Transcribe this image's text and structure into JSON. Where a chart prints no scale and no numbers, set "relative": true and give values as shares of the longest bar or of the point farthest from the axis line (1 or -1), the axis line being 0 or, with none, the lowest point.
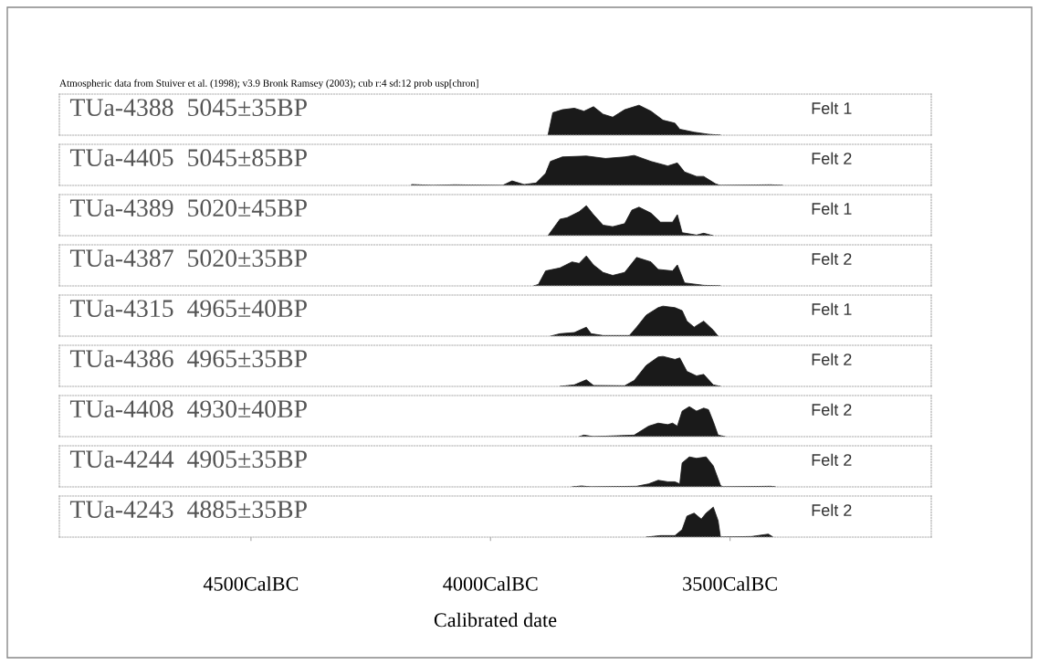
{
  "chart_data": [
    {
      "type": "area",
      "relative": true,
      "color": "#1a1a1a",
      "title": "Atmospheric data from Stuiver et al. (1998); v3.9 Bronk Ramsey (2003); cub r:4 sd:12 prob usp[chron]",
      "annotations": [
        "TUa-4388  5045±35BP",
        "Felt 1"
      ],
      "xlim": [
        4900,
        3080
      ],
      "tick_labels": false,
      "x": [
        3880,
        3870,
        3850,
        3825,
        3805,
        3785,
        3765,
        3745,
        3720,
        3690,
        3665,
        3640,
        3615,
        3605,
        3575,
        3545,
        3520
      ],
      "values": [
        0,
        0.75,
        0.85,
        0.9,
        0.8,
        0.95,
        0.7,
        0.6,
        0.85,
        1.0,
        0.8,
        0.5,
        0.4,
        0.2,
        0.1,
        0.03,
        0
      ]
    },
    {
      "type": "area",
      "relative": true,
      "color": "#1a1a1a",
      "annotations": [
        "TUa-4405  5045±85BP",
        "Felt 2"
      ],
      "xlim": [
        4900,
        3080
      ],
      "tick_labels": false,
      "x": [
        4165,
        4120,
        4075,
        3975,
        3955,
        3930,
        3905,
        3885,
        3875,
        3850,
        3800,
        3760,
        3720,
        3700,
        3665,
        3630,
        3610,
        3595,
        3570,
        3555,
        3530,
        3520,
        3415,
        3390
      ],
      "values": [
        0.03,
        0,
        0.02,
        0,
        0.15,
        0.03,
        0.08,
        0.4,
        0.8,
        0.95,
        0.98,
        0.9,
        0.95,
        1.0,
        0.8,
        0.65,
        0.75,
        0.45,
        0.3,
        0.3,
        0.05,
        0,
        0.02,
        0
      ]
    },
    {
      "type": "area",
      "relative": true,
      "color": "#1a1a1a",
      "annotations": [
        "TUa-4389  5020±45BP",
        "Felt 1"
      ],
      "xlim": [
        4900,
        3080
      ],
      "tick_labels": false,
      "x": [
        3880,
        3855,
        3840,
        3815,
        3800,
        3785,
        3765,
        3745,
        3720,
        3705,
        3690,
        3665,
        3645,
        3620,
        3610,
        3600,
        3570,
        3555,
        3535
      ],
      "values": [
        0,
        0.55,
        0.6,
        0.8,
        1.0,
        0.7,
        0.35,
        0.3,
        0.4,
        0.85,
        0.95,
        0.75,
        0.45,
        0.45,
        0.7,
        0.1,
        0.02,
        0.08,
        0
      ]
    },
    {
      "type": "area",
      "relative": true,
      "color": "#1a1a1a",
      "annotations": [
        "TUa-4387  5020±35BP",
        "Felt 2"
      ],
      "xlim": [
        4900,
        3080
      ],
      "tick_labels": false,
      "x": [
        3910,
        3900,
        3885,
        3855,
        3830,
        3815,
        3800,
        3785,
        3765,
        3745,
        3720,
        3695,
        3665,
        3650,
        3620,
        3610,
        3595,
        3555,
        3520
      ],
      "values": [
        0,
        0.05,
        0.5,
        0.6,
        0.8,
        0.75,
        1.0,
        0.7,
        0.45,
        0.35,
        0.45,
        0.95,
        0.8,
        0.55,
        0.5,
        0.7,
        0.1,
        0.02,
        0
      ]
    },
    {
      "type": "area",
      "relative": true,
      "color": "#1a1a1a",
      "annotations": [
        "TUa-4315  4965±40BP",
        "Felt 1"
      ],
      "xlim": [
        4900,
        3080
      ],
      "tick_labels": false,
      "x": [
        3875,
        3855,
        3825,
        3800,
        3790,
        3765,
        3710,
        3695,
        3675,
        3650,
        3640,
        3615,
        3600,
        3590,
        3575,
        3555,
        3535,
        3525
      ],
      "values": [
        0,
        0.08,
        0.12,
        0.3,
        0.08,
        0.02,
        0.02,
        0.3,
        0.7,
        0.95,
        1.0,
        0.95,
        0.85,
        0.5,
        0.3,
        0.5,
        0.2,
        0
      ]
    },
    {
      "type": "area",
      "relative": true,
      "color": "#1a1a1a",
      "annotations": [
        "TUa-4386  4965±35BP",
        "Felt 2"
      ],
      "xlim": [
        4900,
        3080
      ],
      "tick_labels": false,
      "x": [
        3855,
        3825,
        3800,
        3785,
        3720,
        3700,
        3675,
        3650,
        3640,
        3615,
        3605,
        3590,
        3570,
        3555,
        3535,
        3520
      ],
      "values": [
        0,
        0.05,
        0.22,
        0.03,
        0.02,
        0.2,
        0.7,
        0.98,
        1.0,
        0.9,
        0.95,
        0.5,
        0.35,
        0.4,
        0.05,
        0
      ]
    },
    {
      "type": "area",
      "relative": true,
      "color": "#1a1a1a",
      "annotations": [
        "TUa-4408  4930±40BP",
        "Felt 2"
      ],
      "xlim": [
        4900,
        3080
      ],
      "tick_labels": false,
      "x": [
        3815,
        3805,
        3785,
        3700,
        3670,
        3650,
        3630,
        3620,
        3610,
        3600,
        3585,
        3570,
        3555,
        3545,
        3535,
        3525,
        3510
      ],
      "values": [
        0,
        0.05,
        0,
        0.05,
        0.35,
        0.45,
        0.4,
        0.45,
        0.35,
        0.85,
        1.0,
        0.85,
        0.95,
        0.9,
        0.5,
        0.05,
        0
      ]
    },
    {
      "type": "area",
      "relative": true,
      "color": "#1a1a1a",
      "annotations": [
        "TUa-4244  4905±35BP",
        "Felt 2"
      ],
      "xlim": [
        4900,
        3080
      ],
      "tick_labels": false,
      "x": [
        3830,
        3810,
        3790,
        3695,
        3670,
        3650,
        3630,
        3615,
        3605,
        3600,
        3585,
        3570,
        3550,
        3535,
        3520,
        3515,
        3415,
        3405
      ],
      "values": [
        0,
        0.03,
        0,
        0.02,
        0.1,
        0.22,
        0.17,
        0.17,
        0.1,
        0.8,
        1.0,
        0.95,
        1.0,
        0.7,
        0.05,
        0,
        0.02,
        0
      ]
    },
    {
      "type": "area",
      "relative": true,
      "color": "#1a1a1a",
      "annotations": [
        "TUa-4243  4885±35BP",
        "Felt 2"
      ],
      "xlim": [
        4900,
        3080
      ],
      "xticks": [
        {
          "value": 4500,
          "label": "4500CalBC"
        },
        {
          "value": 4000,
          "label": "4000CalBC"
        },
        {
          "value": 3500,
          "label": "3500CalBC"
        }
      ],
      "tick_labels": "x",
      "xlabel": "Calibrated date",
      "x": [
        3675,
        3645,
        3615,
        3600,
        3590,
        3575,
        3560,
        3550,
        3535,
        3525,
        3520,
        3455,
        3420,
        3410
      ],
      "values": [
        0,
        0.05,
        0.05,
        0.25,
        0.7,
        0.8,
        0.6,
        0.8,
        1.0,
        0.55,
        0,
        0.02,
        0.1,
        0
      ]
    }
  ]
}
